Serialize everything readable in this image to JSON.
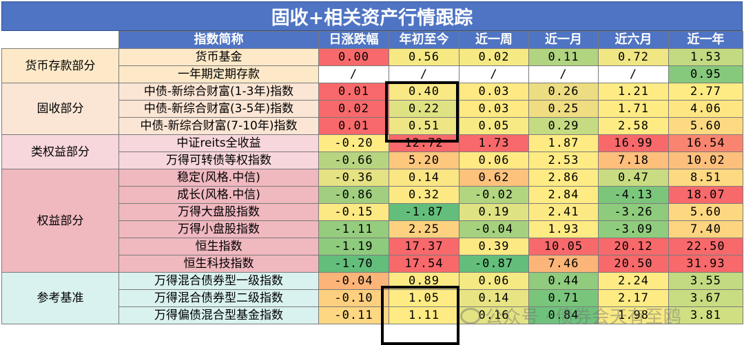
{
  "title": "固收+相关资产行情跟踪",
  "headers": [
    "指数简称",
    "日涨跌幅",
    "年初至今",
    "近一周",
    "近一月",
    "近六月",
    "近一年"
  ],
  "colors": {
    "header_bg": "#4f74c3",
    "groups": {
      "money": "#fde9c8",
      "fixed": "#fbe5d4",
      "quasi": "#f7d6dc",
      "equity": "#f0b8bf",
      "ref": "#d9f2f0"
    }
  },
  "groups": [
    {
      "key": "money",
      "label": "货币存款部分",
      "rows": [
        {
          "name": "货币基金",
          "values": [
            "0.00",
            "0.56",
            "0.02",
            "0.11",
            "0.72",
            "1.53"
          ],
          "colors": [
            "#f8696b",
            "#f6e984",
            "#f5e984",
            "#b0d480",
            "#f0e683",
            "#c2da81"
          ]
        },
        {
          "name": "一年期定期存款",
          "values": [
            "/",
            "/",
            "/",
            "/",
            "/",
            "0.95"
          ],
          "colors": [
            "#ffffff",
            "#ffffff",
            "#ffffff",
            "#ffffff",
            "#ffffff",
            "#86c97d"
          ]
        }
      ]
    },
    {
      "key": "fixed",
      "label": "固收部分",
      "rows": [
        {
          "name": "中债-新综合财富(1-3年)指数",
          "values": [
            "0.01",
            "0.40",
            "0.03",
            "0.26",
            "1.21",
            "2.77"
          ],
          "colors": [
            "#f8696b",
            "#f9e985",
            "#fee983",
            "#ecdd82",
            "#ffeb84",
            "#feeb84"
          ]
        },
        {
          "name": "中债-新综合财富(3-5年)指数",
          "values": [
            "0.02",
            "0.22",
            "0.03",
            "0.25",
            "1.71",
            "4.06"
          ],
          "colors": [
            "#f8696b",
            "#dfe283",
            "#fee983",
            "#f0dd82",
            "#ffeb84",
            "#fee783"
          ]
        },
        {
          "name": "中债-新综合财富(7-10年)指数",
          "values": [
            "0.01",
            "0.51",
            "0.05",
            "0.29",
            "2.58",
            "5.60"
          ],
          "colors": [
            "#f8696b",
            "#eee684",
            "#f7ea84",
            "#c5db81",
            "#ffeb84",
            "#fdd982"
          ]
        }
      ]
    },
    {
      "key": "quasi",
      "label": "类权益部分",
      "rows": [
        {
          "name": "中证reits全收益",
          "values": [
            "-0.20",
            "12.72",
            "1.73",
            "1.87",
            "16.99",
            "16.54"
          ],
          "colors": [
            "#ffeb84",
            "#f8696b",
            "#f8696b",
            "#ffeb84",
            "#f8696b",
            "#f98570"
          ]
        },
        {
          "name": "万得可转债等权指数",
          "values": [
            "-0.66",
            "5.20",
            "0.06",
            "2.53",
            "7.18",
            "10.02"
          ],
          "colors": [
            "#b7d580",
            "#fdc77d",
            "#fee983",
            "#ffeb84",
            "#fdbf7b",
            "#fcc07c"
          ]
        }
      ]
    },
    {
      "key": "equity",
      "label": "权益部分",
      "rows": [
        {
          "name": "稳定(风格.中信)",
          "values": [
            "-0.36",
            "0.14",
            "0.62",
            "2.86",
            "0.47",
            "8.51"
          ],
          "colors": [
            "#e5e283",
            "#fbe684",
            "#fdc27c",
            "#ffeb84",
            "#c9dc81",
            "#fdd981"
          ]
        },
        {
          "name": "成长(风格.中信)",
          "values": [
            "-0.86",
            "0.32",
            "-0.02",
            "2.84",
            "-4.13",
            "18.07"
          ],
          "colors": [
            "#a1cf7f",
            "#fde983",
            "#b2d580",
            "#ffeb84",
            "#7cc67c",
            "#f8696b"
          ]
        },
        {
          "name": "万得大盘股指数",
          "values": [
            "-0.15",
            "-1.87",
            "0.19",
            "2.41",
            "-3.26",
            "5.60"
          ],
          "colors": [
            "#fce983",
            "#63be7b",
            "#dfe283",
            "#fde983",
            "#8ecb7d",
            "#fed881"
          ]
        },
        {
          "name": "万得小盘股指数",
          "values": [
            "-1.11",
            "2.25",
            "-0.04",
            "1.93",
            "-3.09",
            "7.40"
          ],
          "colors": [
            "#95cc7e",
            "#fdd17f",
            "#a6d17f",
            "#ffeb84",
            "#90cc7d",
            "#fdd47f"
          ]
        },
        {
          "name": "恒生指数",
          "values": [
            "-1.19",
            "17.37",
            "0.39",
            "10.05",
            "20.12",
            "22.50"
          ],
          "colors": [
            "#8ecb7d",
            "#f8696b",
            "#fce983",
            "#f8696b",
            "#f8696b",
            "#f8696b"
          ]
        },
        {
          "name": "恒生科技指数",
          "values": [
            "-1.70",
            "17.54",
            "-0.87",
            "7.46",
            "20.50",
            "31.93"
          ],
          "colors": [
            "#63be7b",
            "#f8696b",
            "#63be7b",
            "#fcb579",
            "#f8696b",
            "#f8696b"
          ]
        }
      ]
    },
    {
      "key": "ref",
      "label": "参考基准",
      "rows": [
        {
          "name": "万得混合债券型一级指数",
          "values": [
            "-0.04",
            "0.89",
            "0.06",
            "0.44",
            "2.24",
            "3.55"
          ],
          "colors": [
            "#fcb479",
            "#fbea84",
            "#f5e984",
            "#90cb7e",
            "#ffeb84",
            "#c2da81"
          ]
        },
        {
          "name": "万得混合债券型二级指数",
          "values": [
            "-0.10",
            "1.05",
            "0.14",
            "0.71",
            "2.17",
            "3.67"
          ],
          "colors": [
            "#fdd07f",
            "#ffeb84",
            "#e8e483",
            "#79c57c",
            "#ffeb84",
            "#c8dc81"
          ]
        },
        {
          "name": "万得偏债混合型基金指数",
          "values": [
            "-0.11",
            "1.11",
            "0.16",
            "0.84",
            "1.98",
            "3.81"
          ],
          "colors": [
            "#fdd782",
            "#ffeb84",
            "#e4e383",
            "#6fc27c",
            "#f7e984",
            "#d0df82"
          ]
        }
      ]
    }
  ],
  "watermark": "公众号 · 债券会天有至鸥"
}
